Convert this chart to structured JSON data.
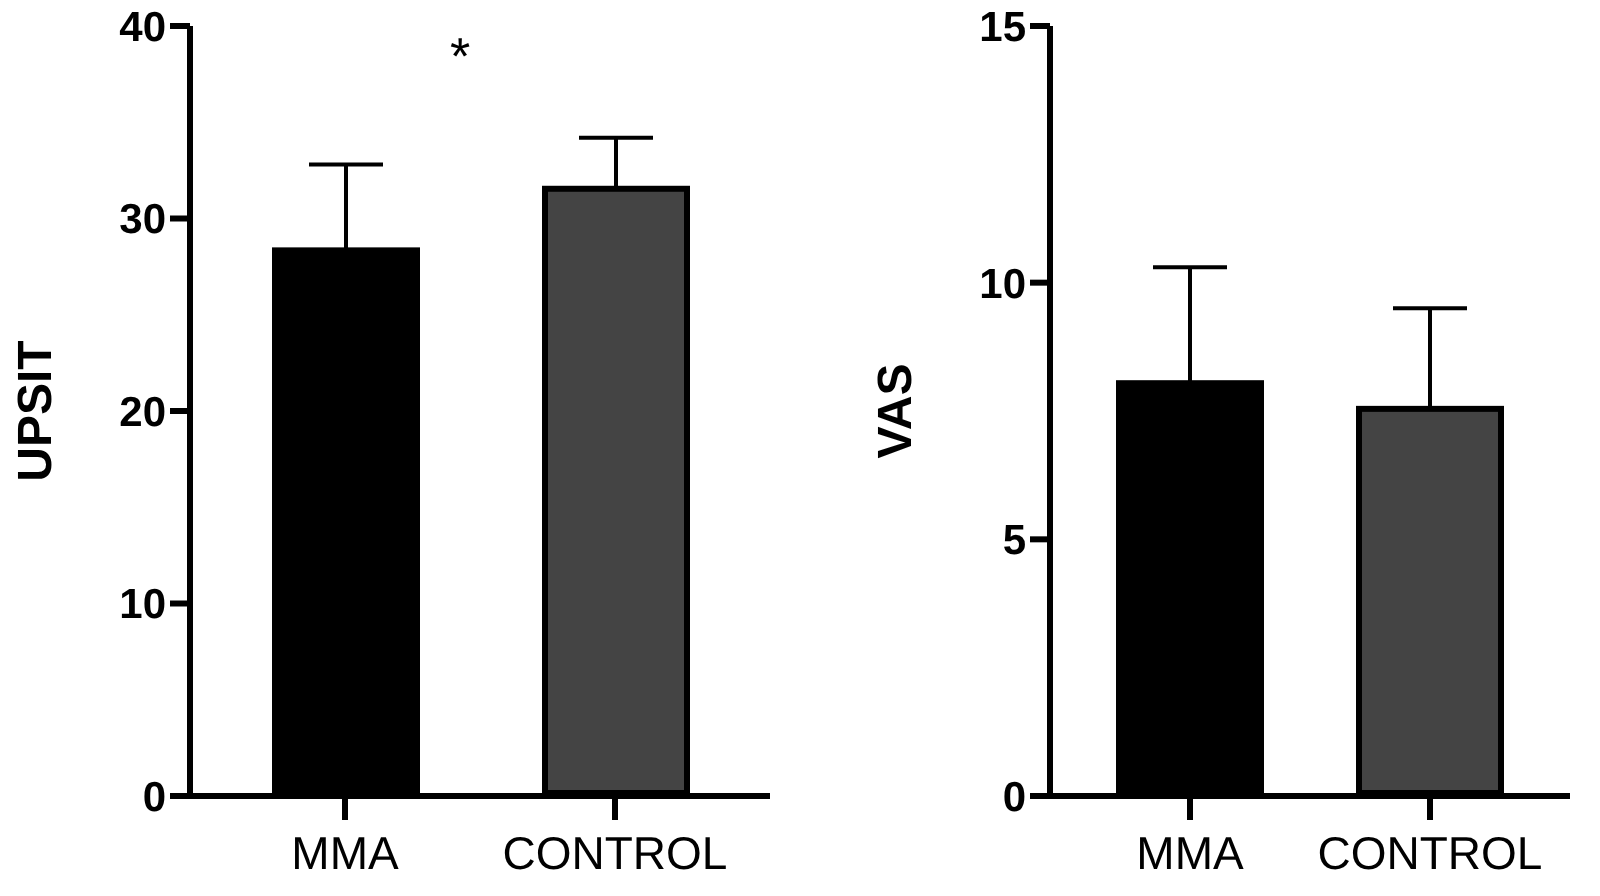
{
  "chart_data": [
    {
      "type": "bar",
      "categories": [
        "MMA",
        "CONTROL"
      ],
      "values": [
        28.5,
        31.7
      ],
      "errors": [
        4.3,
        2.5
      ],
      "colors": [
        "#000000",
        "#444444"
      ],
      "ylabel": "UPSIT",
      "ylim": [
        0,
        40
      ],
      "yticks": [
        0,
        10,
        20,
        30,
        40
      ],
      "grid": false,
      "legend": false,
      "annotations": [
        "*"
      ]
    },
    {
      "type": "bar",
      "categories": [
        "MMA",
        "CONTROL"
      ],
      "values": [
        8.1,
        7.6
      ],
      "errors": [
        2.2,
        1.9
      ],
      "colors": [
        "#000000",
        "#444444"
      ],
      "ylabel": "VAS",
      "ylim": [
        0,
        15
      ],
      "yticks": [
        0,
        5,
        10,
        15
      ],
      "grid": false,
      "legend": false
    }
  ]
}
